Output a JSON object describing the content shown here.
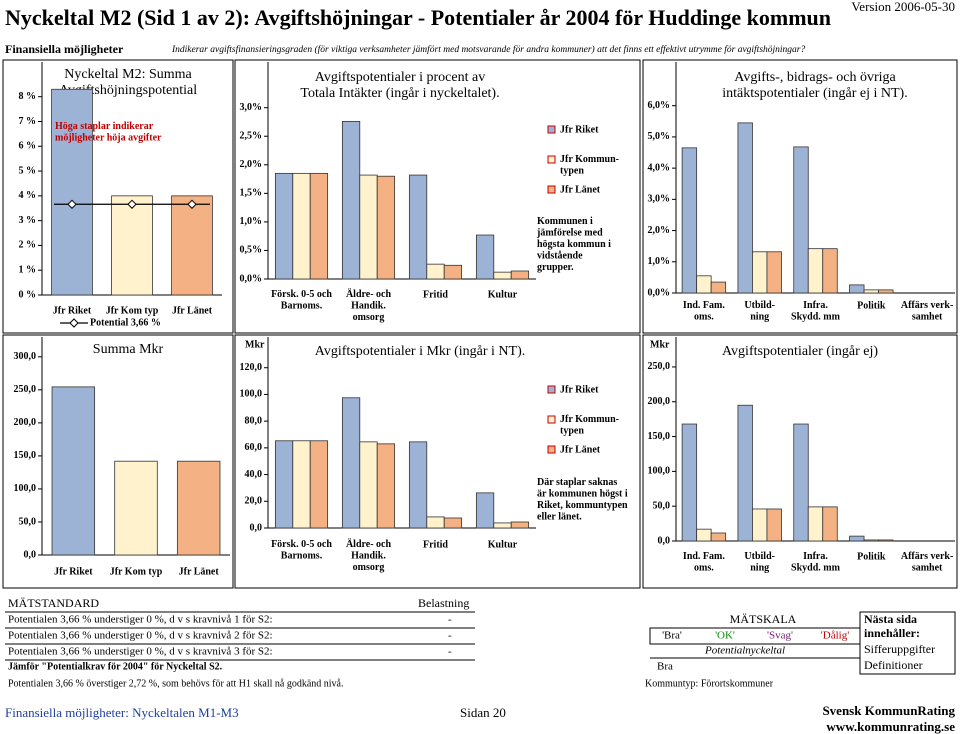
{
  "header": {
    "title": "Nyckeltal M2 (Sid 1 av 2): Avgiftshöjningar - Potentialer år 2004 för Huddinge kommun",
    "version": "Version 2006-05-30",
    "section": "Finansiella möjligheter",
    "description": "Indikerar avgiftsfinansieringsgraden (för viktiga verksamheter jämfört med motsvarande för andra kommuner) att det finns ett effektivt utrymme för avgiftshöjningar?"
  },
  "chart_data": [
    {
      "type": "bar",
      "title": "Nyckeltal M2: Summa\nAvgiftshöjningspotential",
      "categories": [
        "Jfr Riket",
        "Jfr Kom typ",
        "Jfr Länet"
      ],
      "values": [
        8.3,
        4.0,
        4.0
      ],
      "colors": [
        "#9db3d6",
        "#fff2cc",
        "#f4b183"
      ],
      "ylim": [
        0,
        9.4
      ],
      "yticks": [
        {
          "value": 0,
          "label": "0 %"
        },
        {
          "value": 1,
          "label": "1 %"
        },
        {
          "value": 2,
          "label": "2 %"
        },
        {
          "value": 3,
          "label": "3 %"
        },
        {
          "value": 4,
          "label": "4 %"
        },
        {
          "value": 5,
          "label": "5 %"
        },
        {
          "value": 6,
          "label": "6 %"
        },
        {
          "value": 7,
          "label": "7 %"
        },
        {
          "value": 8,
          "label": "8 %"
        }
      ],
      "reference_line": {
        "value": 3.66,
        "label": "Potential 3,66 %"
      },
      "annotation": "Höga staplar indikerar\nmöjligheter höja avgifter"
    },
    {
      "type": "bar",
      "title": "Avgiftspotentialer i procent av\nTotala Intäkter (ingår i nyckeltalet).",
      "categories": [
        "Försk. 0-5 och\nBarnoms.",
        "Äldre- och\nHandik.\nomsorg",
        "Fritid",
        "Kultur"
      ],
      "series": [
        {
          "name": "Jfr Riket",
          "color": "#9db3d6",
          "values": [
            1.85,
            2.76,
            1.82,
            0.77
          ]
        },
        {
          "name": "Jfr Kommun-\ntypen",
          "color": "#fff2cc",
          "values": [
            1.85,
            1.82,
            0.26,
            0.12
          ]
        },
        {
          "name": "Jfr Länet",
          "color": "#f4b183",
          "values": [
            1.85,
            1.8,
            0.24,
            0.14
          ]
        }
      ],
      "ylim": [
        0,
        3.8
      ],
      "yticks": [
        {
          "value": 0,
          "label": "0,0%"
        },
        {
          "value": 0.5,
          "label": "0,5%"
        },
        {
          "value": 1,
          "label": "1,0%"
        },
        {
          "value": 1.5,
          "label": "1,5%"
        },
        {
          "value": 2,
          "label": "2,0%"
        },
        {
          "value": 2.5,
          "label": "2,5%"
        },
        {
          "value": 3,
          "label": "3,0%"
        }
      ],
      "annotation": "Kommunen i\njämförelse med\nhögsta kommun i\nvidstående\ngrupper."
    },
    {
      "type": "bar",
      "title": "Avgifts-, bidrags- och övriga\nintäktspotentialer (ingår ej i NT).",
      "categories": [
        "Ind. Fam.\noms.",
        "Utbild-\nning",
        "Infra.\nSkydd. mm",
        "Politik",
        "Affärs verk-\nsamhet"
      ],
      "series": [
        {
          "color": "#9db3d6",
          "values": [
            4.65,
            5.45,
            4.68,
            0.26,
            0
          ]
        },
        {
          "color": "#fff2cc",
          "values": [
            0.55,
            1.32,
            1.42,
            0.1,
            0
          ]
        },
        {
          "color": "#f4b183",
          "values": [
            0.35,
            1.32,
            1.42,
            0.1,
            0
          ]
        }
      ],
      "ylim": [
        0,
        7.4
      ],
      "yticks": [
        {
          "value": 0,
          "label": "0,0%"
        },
        {
          "value": 1,
          "label": "1,0%"
        },
        {
          "value": 2,
          "label": "2,0%"
        },
        {
          "value": 3,
          "label": "3,0%"
        },
        {
          "value": 4,
          "label": "4,0%"
        },
        {
          "value": 5,
          "label": "5,0%"
        },
        {
          "value": 6,
          "label": "6,0%"
        }
      ]
    },
    {
      "type": "bar",
      "title": "Summa  Mkr",
      "categories": [
        "Jfr Riket",
        "Jfr Kom typ",
        "Jfr Länet"
      ],
      "values": [
        254.5,
        142,
        142
      ],
      "colors": [
        "#9db3d6",
        "#fff2cc",
        "#f4b183"
      ],
      "ylim": [
        0,
        330
      ],
      "yticks": [
        {
          "value": 0,
          "label": "0,0"
        },
        {
          "value": 50,
          "label": "50,0"
        },
        {
          "value": 100,
          "label": "100,0"
        },
        {
          "value": 150,
          "label": "150,0"
        },
        {
          "value": 200,
          "label": "200,0"
        },
        {
          "value": 250,
          "label": "250,0"
        },
        {
          "value": 300,
          "label": "300,0"
        }
      ]
    },
    {
      "type": "bar",
      "title": "Avgiftspotentialer i Mkr (ingår i NT).",
      "axis_label": "Mkr",
      "categories": [
        "Försk. 0-5 och\nBarnoms.",
        "Äldre- och\nHandik.\nomsorg",
        "Fritid",
        "Kultur"
      ],
      "series": [
        {
          "name": "Jfr Riket",
          "color": "#9db3d6",
          "values": [
            65.3,
            97.5,
            64.5,
            26.3
          ]
        },
        {
          "name": "Jfr Kommun-\ntypen",
          "color": "#fff2cc",
          "values": [
            65.3,
            64.5,
            8.3,
            3.8
          ]
        },
        {
          "name": "Jfr Länet",
          "color": "#f4b183",
          "values": [
            65.3,
            63,
            7.5,
            4.5
          ]
        }
      ],
      "ylim": [
        0,
        143
      ],
      "yticks": [
        {
          "value": 0,
          "label": "0,0"
        },
        {
          "value": 20,
          "label": "20,0"
        },
        {
          "value": 40,
          "label": "40,0"
        },
        {
          "value": 60,
          "label": "60,0"
        },
        {
          "value": 80,
          "label": "80,0"
        },
        {
          "value": 100,
          "label": "100,0"
        },
        {
          "value": 120,
          "label": "120,0"
        }
      ],
      "annotation": "Där staplar saknas\när kommunen högst i\nRiket, kommuntypen\neller länet."
    },
    {
      "type": "bar",
      "title": "Avgiftspotentialer (ingår ej)",
      "axis_label": "Mkr",
      "categories": [
        "Ind. Fam.\noms.",
        "Utbild-\nning",
        "Infra.\nSkydd. mm",
        "Politik",
        "Affärs verk-\nsamhet"
      ],
      "series": [
        {
          "color": "#9db3d6",
          "values": [
            168,
            195,
            168,
            7,
            0
          ]
        },
        {
          "color": "#fff2cc",
          "values": [
            17,
            46,
            49,
            1.5,
            0
          ]
        },
        {
          "color": "#f4b183",
          "values": [
            11.5,
            46,
            49,
            1.5,
            0
          ]
        }
      ],
      "ylim": [
        0,
        293
      ],
      "yticks": [
        {
          "value": 0,
          "label": "0,0"
        },
        {
          "value": 50,
          "label": "50,0"
        },
        {
          "value": 100,
          "label": "100,0"
        },
        {
          "value": 150,
          "label": "150,0"
        },
        {
          "value": 200,
          "label": "200,0"
        },
        {
          "value": 250,
          "label": "250,0"
        }
      ]
    }
  ],
  "standard": {
    "heading": "MÄTSTANDARD",
    "load_heading": "Belastning",
    "rows": [
      [
        "Potentialen 3,66 % understiger 0 %, d v s kravnivå 1 för S2:",
        "-"
      ],
      [
        "Potentialen 3,66 % understiger 0 %, d v s kravnivå 2 för S2:",
        "-"
      ],
      [
        "Potentialen 3,66 % understiger 0 %, d v s kravnivå 3 för S2:",
        "-"
      ]
    ],
    "compare": "Jämför \"Potentialkrav för 2004\" för Nyckeltal S2.",
    "note": "Potentialen 3,66 % överstiger 2,72 %, som behövs för att H1 skall nå godkänd nivå."
  },
  "scale": {
    "heading": "MÄTSKALA",
    "levels": [
      "'Bra'",
      "'OK'",
      "'Svag'",
      "'Dålig'"
    ],
    "label": "Potentialnyckeltal",
    "rating": "Bra",
    "municipality_type": "Kommuntyp: Förortskommuner"
  },
  "next_page": {
    "heading": "Nästa sida\ninnehåller:",
    "items": [
      "Sifferuppgifter",
      "Definitioner"
    ]
  },
  "footer": {
    "section": "Finansiella möjligheter: Nyckeltalen M1-M3",
    "page": "Sidan 20",
    "brand": "Svensk KommunRating",
    "url": "www.kommunrating.se"
  }
}
